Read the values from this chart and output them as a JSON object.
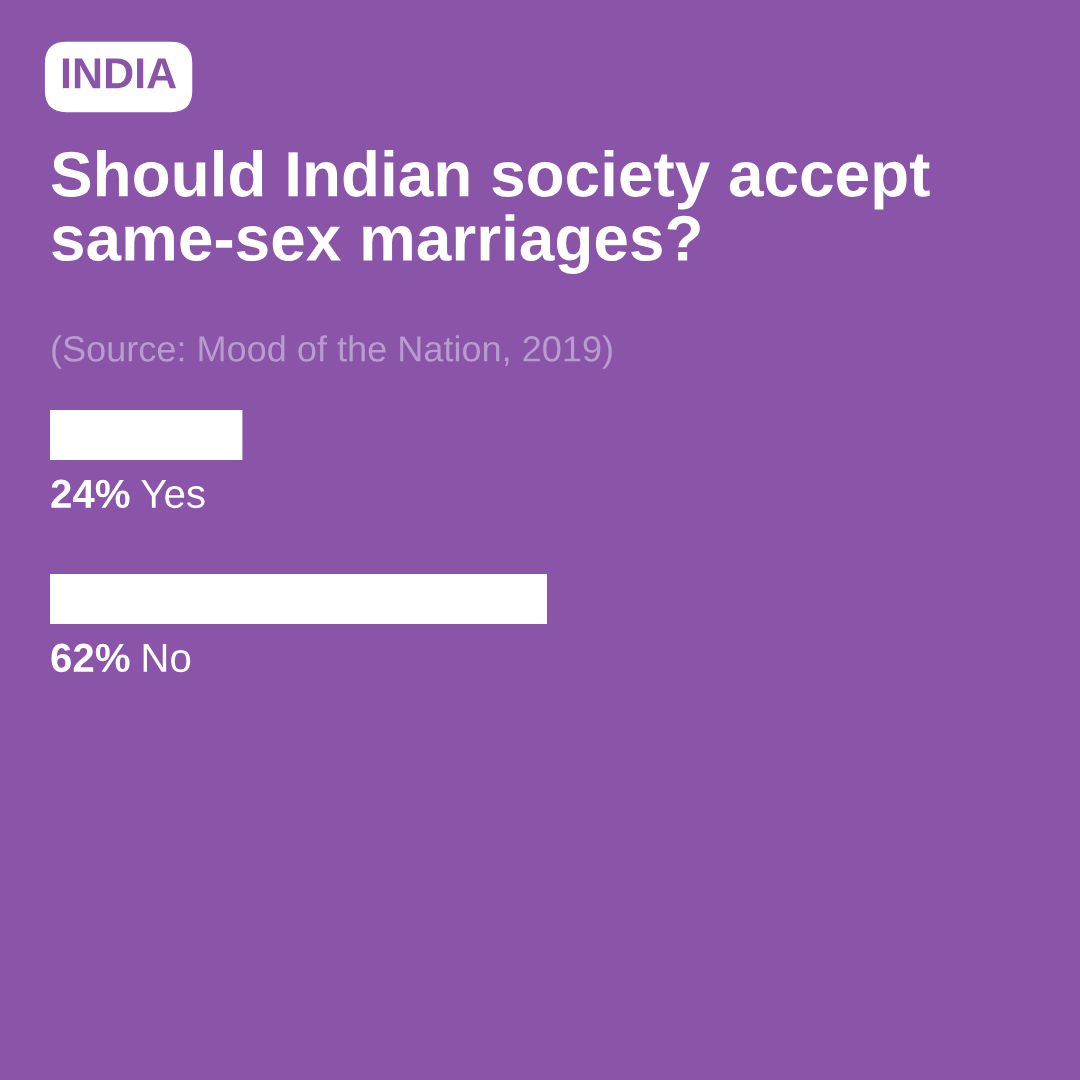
{
  "chart_data": {
    "type": "bar",
    "orientation": "horizontal",
    "title": "Should Indian society accept same-sex marriages?",
    "annotations": [
      "INDIA",
      "(Source: Mood of the Nation, 2019)"
    ],
    "categories": [
      "Yes",
      "No"
    ],
    "values": [
      24,
      62
    ],
    "value_labels": [
      "24%",
      "62%"
    ],
    "color": "#ffffff",
    "tick_labels": false
  }
}
